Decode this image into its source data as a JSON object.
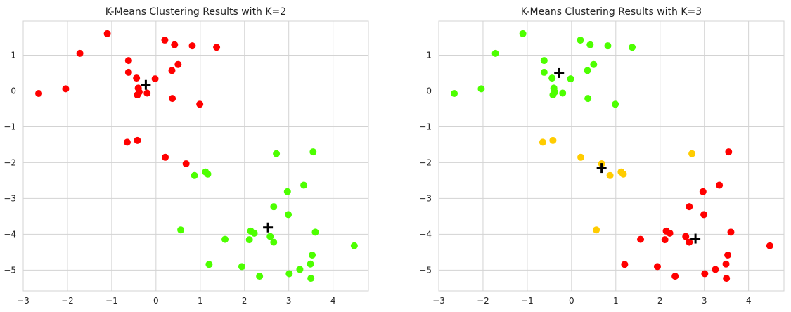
{
  "colors": {
    "red": "#ff0000",
    "green": "#4dff00",
    "yellow": "#ffcc00",
    "centroid": "#000000"
  },
  "chart_data": [
    {
      "type": "scatter",
      "title": "K-Means Clustering Results with K=2",
      "xlim": [
        -3,
        4.8
      ],
      "ylim": [
        -5.58,
        1.95
      ],
      "xticks": [
        -3,
        -2,
        -1,
        0,
        1,
        2,
        3,
        4
      ],
      "yticks": [
        1,
        0,
        -1,
        -2,
        -3,
        -4,
        -5
      ],
      "grid": true,
      "series": [
        {
          "color": "red",
          "points": [
            [
              -2.65,
              -0.07
            ],
            [
              -2.04,
              0.06
            ],
            [
              -1.72,
              1.05
            ],
            [
              -1.1,
              1.6
            ],
            [
              -0.62,
              0.85
            ],
            [
              -0.62,
              0.52
            ],
            [
              -0.44,
              0.36
            ],
            [
              -0.4,
              0.08
            ],
            [
              -0.38,
              -0.03
            ],
            [
              -0.42,
              -0.11
            ],
            [
              -0.2,
              -0.06
            ],
            [
              -0.02,
              0.34
            ],
            [
              0.2,
              1.42
            ],
            [
              0.42,
              1.29
            ],
            [
              0.82,
              1.26
            ],
            [
              1.37,
              1.22
            ],
            [
              0.5,
              0.74
            ],
            [
              0.36,
              0.57
            ],
            [
              0.37,
              -0.21
            ],
            [
              0.99,
              -0.37
            ],
            [
              -0.65,
              -1.43
            ],
            [
              -0.42,
              -1.38
            ],
            [
              0.21,
              -1.85
            ],
            [
              0.68,
              -2.03
            ]
          ]
        },
        {
          "color": "green",
          "points": [
            [
              2.72,
              -1.75
            ],
            [
              3.55,
              -1.7
            ],
            [
              1.12,
              -2.26
            ],
            [
              1.17,
              -2.32
            ],
            [
              0.87,
              -2.36
            ],
            [
              3.34,
              -2.63
            ],
            [
              2.97,
              -2.81
            ],
            [
              2.66,
              -3.23
            ],
            [
              2.99,
              -3.45
            ],
            [
              0.56,
              -3.88
            ],
            [
              2.14,
              -3.91
            ],
            [
              2.22,
              -3.97
            ],
            [
              2.58,
              -4.06
            ],
            [
              2.11,
              -4.15
            ],
            [
              2.66,
              -4.22
            ],
            [
              1.56,
              -4.14
            ],
            [
              3.6,
              -3.94
            ],
            [
              4.48,
              -4.32
            ],
            [
              3.53,
              -4.58
            ],
            [
              1.2,
              -4.84
            ],
            [
              1.94,
              -4.9
            ],
            [
              3.25,
              -4.98
            ],
            [
              3.49,
              -4.83
            ],
            [
              3.01,
              -5.1
            ],
            [
              2.34,
              -5.17
            ],
            [
              3.5,
              -5.23
            ]
          ]
        }
      ],
      "centroids": [
        [
          -0.23,
          0.17
        ],
        [
          2.53,
          -3.81
        ]
      ]
    },
    {
      "type": "scatter",
      "title": "K-Means Clustering Results with K=3",
      "xlim": [
        -3,
        4.8
      ],
      "ylim": [
        -5.58,
        1.95
      ],
      "xticks": [
        -3,
        -2,
        -1,
        0,
        1,
        2,
        3,
        4
      ],
      "yticks": [
        1,
        0,
        -1,
        -2,
        -3,
        -4,
        -5
      ],
      "grid": true,
      "series": [
        {
          "color": "green",
          "points": [
            [
              -2.65,
              -0.07
            ],
            [
              -2.04,
              0.06
            ],
            [
              -1.72,
              1.05
            ],
            [
              -1.1,
              1.6
            ],
            [
              -0.62,
              0.85
            ],
            [
              -0.62,
              0.52
            ],
            [
              -0.44,
              0.36
            ],
            [
              -0.4,
              0.08
            ],
            [
              -0.38,
              -0.03
            ],
            [
              -0.42,
              -0.11
            ],
            [
              -0.2,
              -0.06
            ],
            [
              -0.02,
              0.34
            ],
            [
              0.2,
              1.42
            ],
            [
              0.42,
              1.29
            ],
            [
              0.82,
              1.26
            ],
            [
              1.37,
              1.22
            ],
            [
              0.5,
              0.74
            ],
            [
              0.36,
              0.57
            ],
            [
              0.37,
              -0.21
            ],
            [
              0.99,
              -0.37
            ]
          ]
        },
        {
          "color": "yellow",
          "points": [
            [
              -0.65,
              -1.43
            ],
            [
              -0.42,
              -1.38
            ],
            [
              0.21,
              -1.85
            ],
            [
              0.68,
              -2.03
            ],
            [
              2.72,
              -1.75
            ],
            [
              1.12,
              -2.26
            ],
            [
              1.17,
              -2.32
            ],
            [
              0.87,
              -2.36
            ],
            [
              0.56,
              -3.88
            ]
          ]
        },
        {
          "color": "red",
          "points": [
            [
              3.55,
              -1.7
            ],
            [
              3.34,
              -2.63
            ],
            [
              2.97,
              -2.81
            ],
            [
              2.66,
              -3.23
            ],
            [
              2.99,
              -3.45
            ],
            [
              2.14,
              -3.91
            ],
            [
              2.22,
              -3.97
            ],
            [
              2.58,
              -4.06
            ],
            [
              2.11,
              -4.15
            ],
            [
              2.66,
              -4.22
            ],
            [
              1.56,
              -4.14
            ],
            [
              3.6,
              -3.94
            ],
            [
              4.48,
              -4.32
            ],
            [
              3.53,
              -4.58
            ],
            [
              1.2,
              -4.84
            ],
            [
              1.94,
              -4.9
            ],
            [
              3.25,
              -4.98
            ],
            [
              3.49,
              -4.83
            ],
            [
              3.01,
              -5.1
            ],
            [
              2.34,
              -5.17
            ],
            [
              3.5,
              -5.23
            ]
          ]
        }
      ],
      "centroids": [
        [
          -0.28,
          0.5
        ],
        [
          0.68,
          -2.15
        ],
        [
          2.8,
          -4.12
        ]
      ]
    }
  ]
}
